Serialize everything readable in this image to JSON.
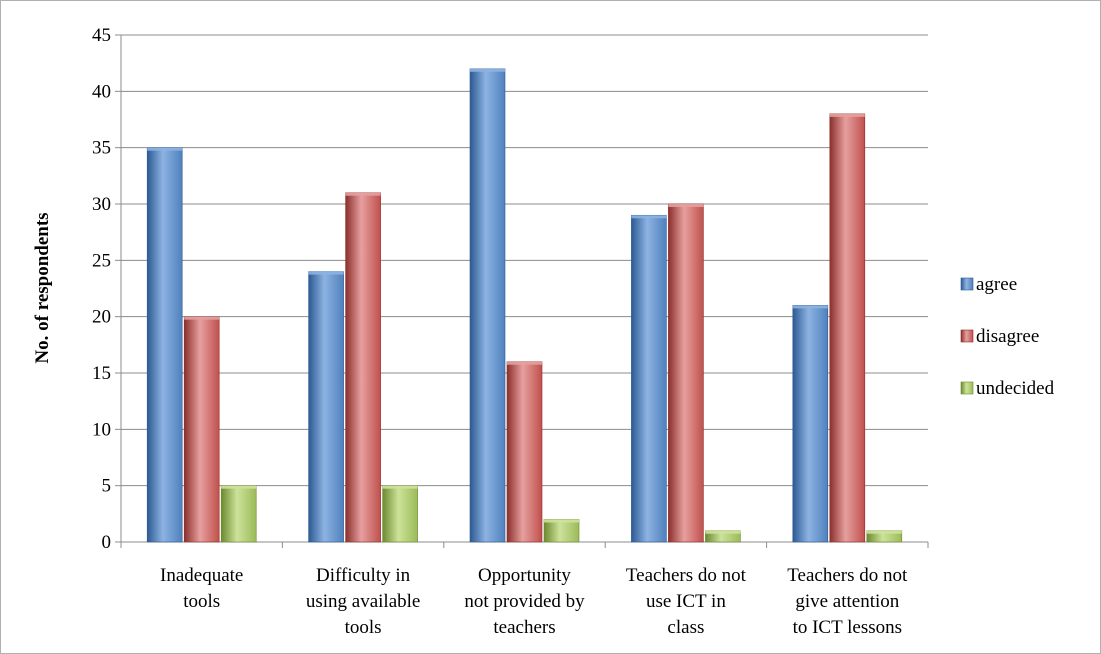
{
  "chart_data": {
    "type": "bar",
    "categories": [
      [
        "Inadequate",
        "tools"
      ],
      [
        "Difficulty in",
        "using available",
        "tools"
      ],
      [
        "Opportunity",
        "not provided by",
        "teachers"
      ],
      [
        "Teachers do not",
        "use ICT in",
        "class"
      ],
      [
        "Teachers do not",
        "give attention",
        "to ICT lessons"
      ]
    ],
    "series": [
      {
        "name": "agree",
        "values": [
          35,
          24,
          42,
          29,
          21
        ]
      },
      {
        "name": "disagree",
        "values": [
          20,
          31,
          16,
          30,
          38
        ]
      },
      {
        "name": "undecided",
        "values": [
          5,
          5,
          2,
          1,
          1
        ]
      }
    ],
    "title": "",
    "xlabel": "",
    "ylabel": "No. of respondents",
    "ylim": [
      0,
      45
    ],
    "yticks": [
      0,
      5,
      10,
      15,
      20,
      25,
      30,
      35,
      40,
      45
    ],
    "grid": true,
    "legend_position": "right",
    "colors": {
      "agree": {
        "light": "#8db3e2",
        "base": "#4f81bd",
        "dark": "#2c5a93"
      },
      "disagree": {
        "light": "#e6a09f",
        "base": "#c0504d",
        "dark": "#8c2f2c"
      },
      "undecided": {
        "light": "#cde29a",
        "base": "#9bbb59",
        "dark": "#6b8a2f"
      }
    }
  }
}
